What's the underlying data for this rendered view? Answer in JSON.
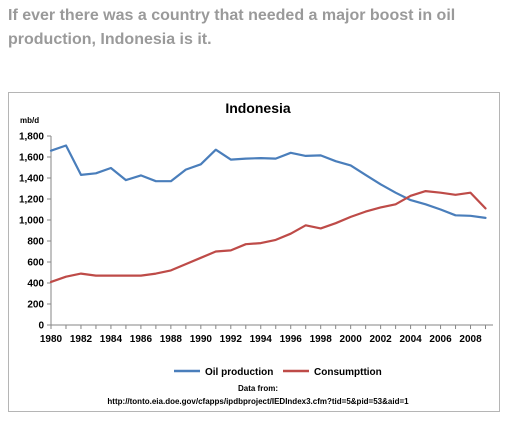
{
  "headline": {
    "text": "If ever there was a country that needed a major boost in oil production, Indonesia is it."
  },
  "colors": {
    "oil": "#4a7ebb",
    "consumption": "#be4b48",
    "headline": "#9a9a9a",
    "axis": "#868686"
  },
  "chart_data": {
    "type": "line",
    "title": "Indonesia",
    "ylabel": "mb/d",
    "xlabel": "",
    "ylim": [
      0,
      1800
    ],
    "ytick_labels": [
      "0",
      "200",
      "400",
      "600",
      "800",
      "1,000",
      "1,200",
      "1,400",
      "1,600",
      "1,800"
    ],
    "xtick_labels": [
      "1980",
      "1982",
      "1984",
      "1986",
      "1988",
      "1990",
      "1992",
      "1994",
      "1996",
      "1998",
      "2000",
      "2002",
      "2004",
      "2006",
      "2008"
    ],
    "grid": false,
    "legend": "bottom",
    "x": [
      1980,
      1981,
      1982,
      1983,
      1984,
      1985,
      1986,
      1987,
      1988,
      1989,
      1990,
      1991,
      1992,
      1993,
      1994,
      1995,
      1996,
      1997,
      1998,
      1999,
      2000,
      2001,
      2002,
      2003,
      2004,
      2005,
      2006,
      2007,
      2008,
      2009
    ],
    "series": [
      {
        "name": "Oil production",
        "values": [
          1660,
          1710,
          1430,
          1445,
          1495,
          1380,
          1425,
          1370,
          1370,
          1480,
          1530,
          1670,
          1575,
          1585,
          1590,
          1585,
          1640,
          1610,
          1615,
          1560,
          1520,
          1430,
          1340,
          1260,
          1190,
          1150,
          1100,
          1045,
          1040,
          1020
        ]
      },
      {
        "name": "Consumpttion",
        "values": [
          410,
          460,
          490,
          470,
          470,
          470,
          470,
          490,
          520,
          580,
          640,
          700,
          710,
          770,
          780,
          810,
          870,
          950,
          920,
          970,
          1030,
          1080,
          1120,
          1150,
          1230,
          1275,
          1260,
          1240,
          1260,
          1110
        ]
      }
    ],
    "source": {
      "heading": "Data from:",
      "url": "http://tonto.eia.doe.gov/cfapps/ipdbproject/IEDIndex3.cfm?tid=5&pid=53&aid=1"
    }
  }
}
